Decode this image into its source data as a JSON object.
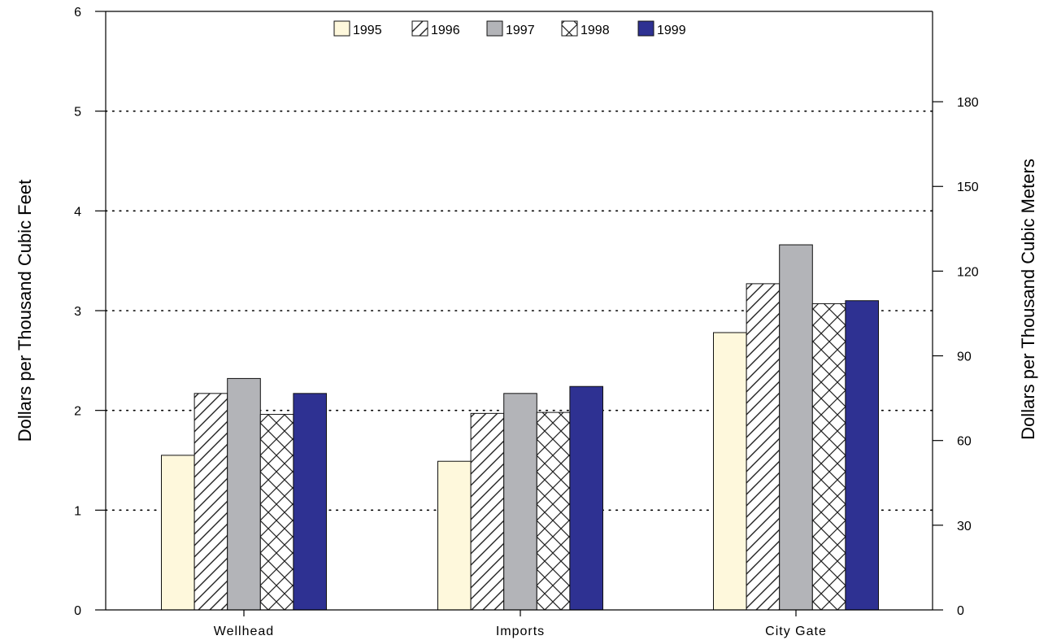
{
  "chart_data": {
    "type": "bar",
    "title": "",
    "categories": [
      "Wellhead",
      "Imports",
      "City Gate"
    ],
    "series": [
      {
        "name": "1995",
        "values": [
          1.55,
          1.49,
          2.78
        ],
        "fill": "#fef8dc",
        "pattern": "solid"
      },
      {
        "name": "1996",
        "values": [
          2.17,
          1.97,
          3.27
        ],
        "fill": "#ffffff",
        "pattern": "diagonal-hatch"
      },
      {
        "name": "1997",
        "values": [
          2.32,
          2.17,
          3.66
        ],
        "fill": "#b3b4b8",
        "pattern": "solid"
      },
      {
        "name": "1998",
        "values": [
          1.96,
          1.98,
          3.07
        ],
        "fill": "#ffffff",
        "pattern": "cross-hatch"
      },
      {
        "name": "1999",
        "values": [
          2.17,
          2.24,
          3.1
        ],
        "fill": "#2e3192",
        "pattern": "solid"
      }
    ],
    "ylabel": "Dollars per Thousand Cubic Feet",
    "ylim": [
      0,
      6
    ],
    "yticks": [
      "0",
      "1",
      "2",
      "3",
      "4",
      "5",
      "6"
    ],
    "y2label": "Dollars per Thousand Cubic Meters",
    "y2lim": [
      0,
      212
    ],
    "y2ticks": [
      "0",
      "30",
      "60",
      "90",
      "120",
      "150",
      "180"
    ],
    "grid": "dotted horizontal",
    "legend_position": "top-center"
  }
}
